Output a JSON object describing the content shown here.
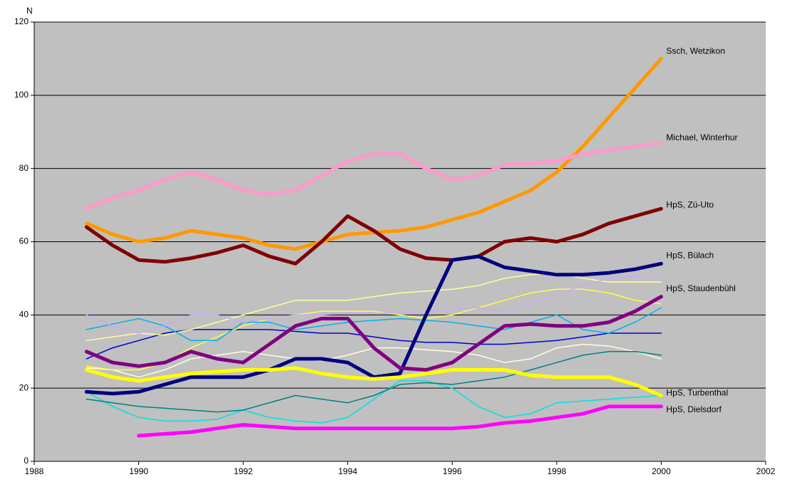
{
  "chart_data": {
    "type": "line",
    "y_label": "N",
    "x": [
      1989,
      1989.5,
      1990,
      1990.5,
      1991,
      1991.5,
      1992,
      1992.5,
      1993,
      1993.5,
      1994,
      1994.5,
      1995,
      1995.5,
      1996,
      1996.5,
      1997,
      1997.5,
      1998,
      1998.5,
      1999,
      1999.5,
      2000
    ],
    "xlim": [
      1988,
      2002
    ],
    "xticks": [
      1988,
      1990,
      1992,
      1994,
      1996,
      1998,
      2000,
      2002
    ],
    "ylim": [
      0,
      120
    ],
    "yticks": [
      0,
      20,
      40,
      60,
      80,
      100,
      120
    ],
    "grid": true,
    "series": [
      {
        "color": "#ffffe0",
        "values": [
          25.5,
          25,
          23,
          25,
          28,
          29,
          30,
          29,
          28,
          27.5,
          29,
          31,
          31,
          30.5,
          30,
          29,
          27,
          28,
          31,
          32,
          31.5,
          30,
          28
        ]
      },
      {
        "color": "#00e0e0",
        "values": [
          19,
          15,
          12,
          11,
          11,
          11.5,
          14,
          12,
          11,
          10.5,
          12,
          17,
          22,
          22,
          20,
          15,
          12,
          13,
          16,
          16.5,
          17,
          17.5,
          18
        ]
      },
      {
        "color": "#008080",
        "values": [
          17,
          16,
          15,
          14.5,
          14,
          13.5,
          14,
          16,
          18,
          17,
          16,
          18,
          21,
          21.5,
          21,
          22,
          23,
          25,
          27,
          29,
          30,
          30,
          29
        ]
      },
      {
        "color": "#0000cc",
        "values": [
          28,
          31,
          33,
          35,
          36,
          36,
          36,
          36,
          35.5,
          35,
          35,
          34,
          33,
          32.5,
          32.5,
          32,
          32,
          32.5,
          33,
          34,
          35,
          35,
          35
        ]
      },
      {
        "color": "#ffff99",
        "values": [
          33,
          34,
          35,
          34.5,
          36,
          38,
          40,
          42,
          44,
          44,
          44,
          45,
          46,
          46.5,
          47,
          48,
          50,
          51,
          51.5,
          50,
          49,
          49,
          49
        ]
      },
      {
        "color": "#ffff40",
        "values": [
          26,
          25,
          25,
          27,
          31,
          34,
          37,
          39,
          40,
          41,
          41,
          41,
          40,
          39,
          40,
          42,
          44,
          46,
          47,
          47,
          46,
          44,
          43
        ]
      },
      {
        "color": "#00b0f0",
        "values": [
          36,
          37.5,
          39,
          37,
          33,
          33,
          38,
          38,
          36,
          37,
          38,
          38.5,
          39,
          38.5,
          38,
          37,
          36,
          38,
          40,
          36,
          35,
          38,
          42
        ]
      },
      {
        "color": "#c8a8ff",
        "values": [
          40,
          37,
          35,
          37,
          40,
          40,
          38,
          39,
          40,
          40,
          40.5,
          40.5,
          40.5,
          41,
          41.5,
          42,
          41,
          43,
          45.5,
          48,
          50,
          50.5,
          50
        ]
      },
      {
        "name": "Ssch, Wetzikon",
        "color": "#ff9900",
        "values": [
          65,
          62,
          60,
          61,
          63,
          62,
          61,
          59,
          58,
          60,
          62,
          62.5,
          63,
          64,
          66,
          68,
          71,
          74,
          79,
          86,
          94,
          102,
          110
        ]
      },
      {
        "name": "Michael,  Winterhur",
        "color": "#ff99cc",
        "values": [
          69,
          72,
          74,
          77,
          79,
          77,
          74,
          73,
          74,
          78,
          82,
          84,
          84,
          80,
          77,
          78,
          81,
          81.5,
          82,
          84,
          85,
          86,
          87
        ]
      },
      {
        "name": "HpS, Zü-Uto",
        "color": "#800000",
        "values": [
          64,
          59,
          55,
          54.5,
          55.5,
          57,
          59,
          56,
          54,
          60,
          67,
          63,
          58,
          55.5,
          55,
          56,
          60,
          61,
          60,
          62,
          65,
          67,
          69
        ]
      },
      {
        "name": "HpS, Bülach",
        "color": "#000080",
        "values": [
          19,
          18.5,
          19,
          21,
          23,
          23,
          23,
          25,
          28,
          28,
          27,
          23,
          24,
          40,
          55,
          56,
          53,
          52,
          51,
          51,
          51.5,
          52.5,
          54
        ]
      },
      {
        "name": "HpS, Staudenbühl",
        "color": "#800080",
        "values": [
          30,
          27,
          26,
          27,
          30,
          28,
          27,
          32,
          37,
          39,
          39,
          31,
          25.5,
          25,
          27,
          32,
          37,
          37.5,
          37,
          37,
          38,
          41,
          45
        ]
      },
      {
        "name": "HpS, Turbenthal",
        "color": "#ffff00",
        "values": [
          25,
          23,
          22,
          23,
          24,
          24.5,
          25,
          25,
          25.5,
          24,
          23,
          22.5,
          23,
          24,
          25,
          25,
          25,
          23.5,
          23,
          23,
          23,
          21,
          18
        ]
      },
      {
        "name": "HpS, Dielsdorf",
        "color": "#ff00ff",
        "values": [
          null,
          null,
          7,
          7.5,
          8,
          9,
          10,
          9.5,
          9,
          9,
          9,
          9,
          9,
          9,
          9,
          9.5,
          10.5,
          11,
          12,
          13,
          15,
          15,
          15
        ]
      }
    ]
  }
}
